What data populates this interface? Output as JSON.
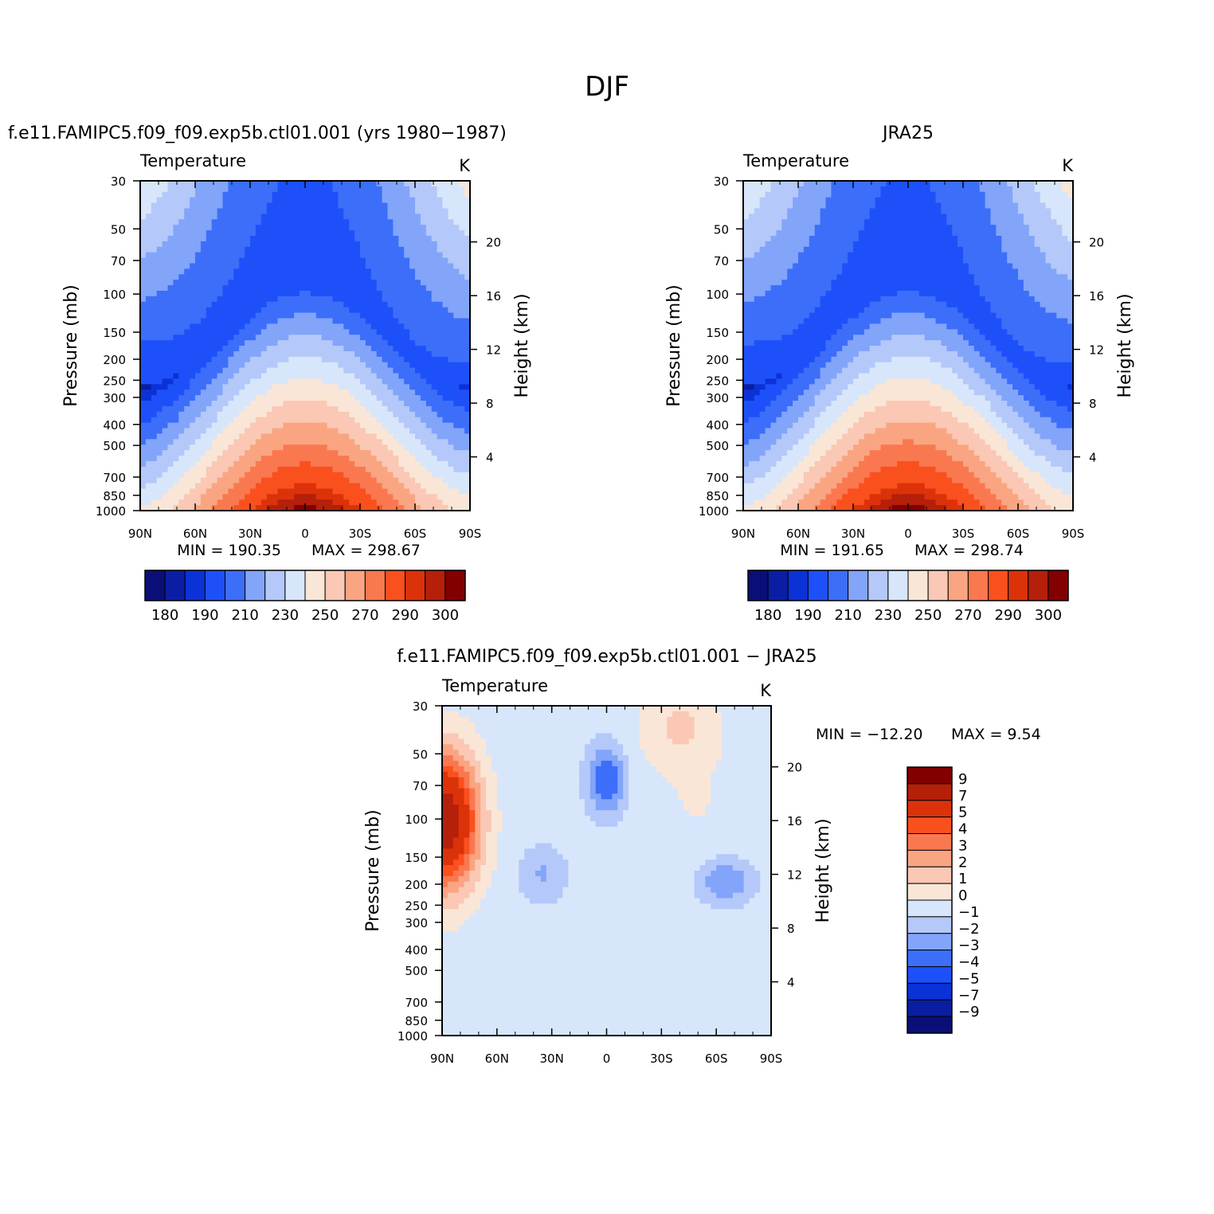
{
  "figure": {
    "title": "DJF"
  },
  "colors": {
    "temp_levels": [
      "#0a0f78",
      "#0a1ea3",
      "#0a32d7",
      "#1e50fa",
      "#3c6efa",
      "#82a5fa",
      "#b4c8fa",
      "#d7e6fa",
      "#fae6d7",
      "#fac8b4",
      "#faa582",
      "#fa7850",
      "#fa501e",
      "#dc320a",
      "#b4200a",
      "#820000"
    ],
    "diff_levels": [
      "#820000",
      "#b4200a",
      "#dc320a",
      "#fa501e",
      "#fa7850",
      "#faa582",
      "#fac8b4",
      "#fae6d7",
      "#d7e6fa",
      "#b4c8fa",
      "#82a5fa",
      "#3c6efa",
      "#1e50fa",
      "#0a32d7",
      "#0a1ea3",
      "#0a0f78"
    ]
  },
  "panels": [
    {
      "title": "f.e11.FAMIPC5.f09_f09.exp5b.ctl01.001 (yrs 1980−1987)",
      "variable": "Temperature",
      "units": "K",
      "ylabel": "Pressure (mb)",
      "ylabel_right": "Height (km)",
      "min_label": "MIN = 190.35",
      "max_label": "MAX = 298.67"
    },
    {
      "title": "JRA25",
      "variable": "Temperature",
      "units": "K",
      "ylabel": "Pressure (mb)",
      "ylabel_right": "Height (km)",
      "min_label": "MIN = 191.65",
      "max_label": "MAX = 298.74"
    },
    {
      "title": "f.e11.FAMIPC5.f09_f09.exp5b.ctl01.001 − JRA25",
      "variable": "Temperature",
      "units": "K",
      "ylabel": "Pressure (mb)",
      "ylabel_right": "Height (km)",
      "min_label": "MIN = −12.20",
      "max_label": "MAX =    9.54"
    }
  ],
  "chart_data": [
    {
      "type": "heatmap",
      "title": "f.e11.FAMIPC5.f09_f09.exp5b.ctl01.001 (yrs 1980−1987)",
      "xlabel": "",
      "ylabel": "Pressure (mb)",
      "y2label": "Height (km)",
      "x_ticks": [
        "90N",
        "60N",
        "30N",
        "0",
        "30S",
        "60S",
        "90S"
      ],
      "y_ticks": [
        30,
        50,
        70,
        100,
        150,
        200,
        250,
        300,
        400,
        500,
        700,
        850,
        1000
      ],
      "y2_ticks": [
        4,
        8,
        12,
        16,
        20
      ],
      "y_scale": "log",
      "min": 190.35,
      "max": 298.67,
      "colorbar_labels": [
        "180",
        "190",
        "210",
        "230",
        "250",
        "270",
        "290",
        "300"
      ]
    },
    {
      "type": "heatmap",
      "title": "JRA25",
      "xlabel": "",
      "ylabel": "Pressure (mb)",
      "y2label": "Height (km)",
      "x_ticks": [
        "90N",
        "60N",
        "30N",
        "0",
        "30S",
        "60S",
        "90S"
      ],
      "y_ticks": [
        30,
        50,
        70,
        100,
        150,
        200,
        250,
        300,
        400,
        500,
        700,
        850,
        1000
      ],
      "y2_ticks": [
        4,
        8,
        12,
        16,
        20
      ],
      "y_scale": "log",
      "min": 191.65,
      "max": 298.74,
      "colorbar_labels": [
        "180",
        "190",
        "210",
        "230",
        "250",
        "270",
        "290",
        "300"
      ]
    },
    {
      "type": "heatmap",
      "title": "f.e11.FAMIPC5.f09_f09.exp5b.ctl01.001 − JRA25",
      "xlabel": "",
      "ylabel": "Pressure (mb)",
      "y2label": "Height (km)",
      "x_ticks": [
        "90N",
        "60N",
        "30N",
        "0",
        "30S",
        "60S",
        "90S"
      ],
      "y_ticks": [
        30,
        50,
        70,
        100,
        150,
        200,
        250,
        300,
        400,
        500,
        700,
        850,
        1000
      ],
      "y2_ticks": [
        4,
        8,
        12,
        16,
        20
      ],
      "y_scale": "log",
      "min": -12.2,
      "max": 9.54,
      "colorbar_labels": [
        "9",
        "7",
        "5",
        "4",
        "3",
        "2",
        "1",
        "0",
        "−1",
        "−2",
        "−3",
        "−4",
        "−5",
        "−7",
        "−9"
      ]
    }
  ]
}
